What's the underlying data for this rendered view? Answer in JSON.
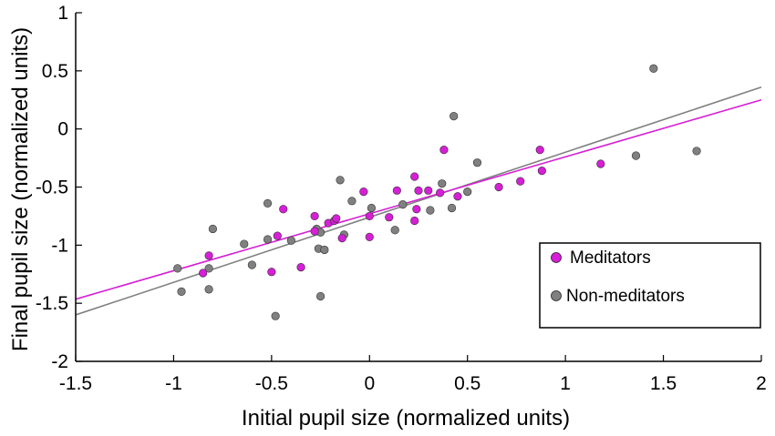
{
  "chart_data": {
    "type": "scatter",
    "xlabel": "Initial pupil size (normalized units)",
    "ylabel": "Final pupil size (normalized units)",
    "xlim": [
      -1.5,
      2
    ],
    "ylim": [
      -2,
      1
    ],
    "xticks": [
      -1.5,
      -1,
      -0.5,
      0,
      0.5,
      1,
      1.5,
      2
    ],
    "xtick_labels": [
      "-1.5",
      "-1",
      "-0.5",
      "0",
      "0.5",
      "1",
      "1.5",
      "2"
    ],
    "yticks": [
      1,
      0.5,
      0,
      -0.5,
      -1,
      -1.5,
      -2
    ],
    "ytick_labels": [
      "1",
      "0.5",
      "0",
      "-0.5",
      "-1",
      "-1.5",
      "-2"
    ],
    "grid": false,
    "legend_position": "bottom-right",
    "series": [
      {
        "name": "Meditators",
        "color": "#d61fd6",
        "fit": {
          "slope": 0.49,
          "intercept": -0.73
        },
        "points": [
          {
            "x": -0.85,
            "y": -1.24
          },
          {
            "x": -0.82,
            "y": -1.09
          },
          {
            "x": -0.5,
            "y": -1.23
          },
          {
            "x": -0.47,
            "y": -0.92
          },
          {
            "x": -0.44,
            "y": -0.69
          },
          {
            "x": -0.35,
            "y": -1.19
          },
          {
            "x": -0.28,
            "y": -0.75
          },
          {
            "x": -0.28,
            "y": -0.88
          },
          {
            "x": -0.21,
            "y": -0.81
          },
          {
            "x": -0.18,
            "y": -0.79
          },
          {
            "x": -0.17,
            "y": -0.77
          },
          {
            "x": -0.14,
            "y": -0.94
          },
          {
            "x": -0.03,
            "y": -0.54
          },
          {
            "x": 0.0,
            "y": -0.93
          },
          {
            "x": 0.0,
            "y": -0.75
          },
          {
            "x": 0.1,
            "y": -0.76
          },
          {
            "x": 0.14,
            "y": -0.53
          },
          {
            "x": 0.23,
            "y": -0.41
          },
          {
            "x": 0.23,
            "y": -0.79
          },
          {
            "x": 0.24,
            "y": -0.69
          },
          {
            "x": 0.25,
            "y": -0.53
          },
          {
            "x": 0.3,
            "y": -0.53
          },
          {
            "x": 0.36,
            "y": -0.55
          },
          {
            "x": 0.38,
            "y": -0.18
          },
          {
            "x": 0.45,
            "y": -0.58
          },
          {
            "x": 0.66,
            "y": -0.5
          },
          {
            "x": 0.77,
            "y": -0.45
          },
          {
            "x": 0.87,
            "y": -0.18
          },
          {
            "x": 0.88,
            "y": -0.36
          },
          {
            "x": 1.18,
            "y": -0.3
          }
        ]
      },
      {
        "name": "Non-meditators",
        "color": "#808080",
        "fit": {
          "slope": 0.56,
          "intercept": -0.76
        },
        "points": [
          {
            "x": -0.98,
            "y": -1.2
          },
          {
            "x": -0.96,
            "y": -1.4
          },
          {
            "x": -0.82,
            "y": -1.2
          },
          {
            "x": -0.82,
            "y": -1.38
          },
          {
            "x": -0.8,
            "y": -0.86
          },
          {
            "x": -0.64,
            "y": -0.99
          },
          {
            "x": -0.6,
            "y": -1.17
          },
          {
            "x": -0.52,
            "y": -0.95
          },
          {
            "x": -0.52,
            "y": -0.64
          },
          {
            "x": -0.48,
            "y": -1.61
          },
          {
            "x": -0.4,
            "y": -0.96
          },
          {
            "x": -0.27,
            "y": -0.86
          },
          {
            "x": -0.26,
            "y": -1.03
          },
          {
            "x": -0.25,
            "y": -0.89
          },
          {
            "x": -0.25,
            "y": -1.44
          },
          {
            "x": -0.23,
            "y": -1.04
          },
          {
            "x": -0.15,
            "y": -0.44
          },
          {
            "x": -0.13,
            "y": -0.91
          },
          {
            "x": -0.09,
            "y": -0.62
          },
          {
            "x": 0.01,
            "y": -0.68
          },
          {
            "x": 0.13,
            "y": -0.87
          },
          {
            "x": 0.17,
            "y": -0.65
          },
          {
            "x": 0.31,
            "y": -0.7
          },
          {
            "x": 0.37,
            "y": -0.47
          },
          {
            "x": 0.42,
            "y": -0.68
          },
          {
            "x": 0.43,
            "y": 0.11
          },
          {
            "x": 0.5,
            "y": -0.54
          },
          {
            "x": 0.55,
            "y": -0.29
          },
          {
            "x": 1.36,
            "y": -0.23
          },
          {
            "x": 1.45,
            "y": 0.52
          },
          {
            "x": 1.67,
            "y": -0.19
          }
        ]
      }
    ]
  }
}
